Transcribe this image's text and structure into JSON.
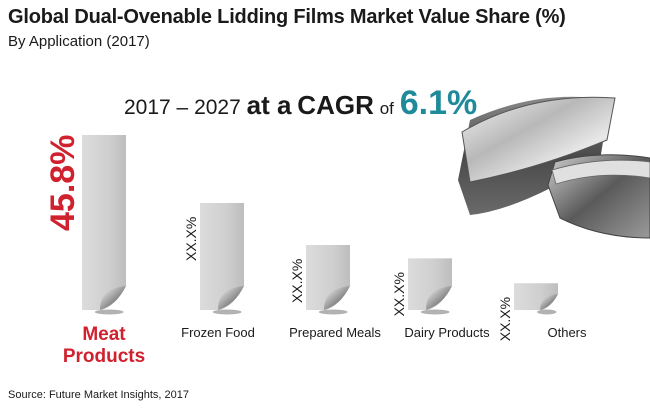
{
  "title": "Global Dual-Ovenable Lidding Films Market Value Share (%)",
  "subtitle": "By Application (2017)",
  "cagr": {
    "range": "2017 – 2027",
    "at_a": "at a",
    "label": "CAGR",
    "of": "of",
    "value": "6.1%"
  },
  "source": "Source: Future Market Insights, 2017",
  "colors": {
    "highlight": "#d0212f",
    "cagr": "#1e8a9a",
    "bar": "#c8c8c8",
    "text": "#1a1a1a"
  },
  "chart_data": {
    "type": "bar",
    "categories": [
      "Meat Products",
      "Frozen Food",
      "Prepared Meals",
      "Dairy Products",
      "Others"
    ],
    "category_lines": [
      [
        "Meat",
        "Products"
      ],
      [
        "Frozen Food"
      ],
      [
        "Prepared Meals"
      ],
      [
        "Dairy Products"
      ],
      [
        "Others"
      ]
    ],
    "labels": [
      "45.8%",
      "XX.X%",
      "XX.X%",
      "XX.X%",
      "XX.X%"
    ],
    "values": [
      45.8,
      28.0,
      17.0,
      13.5,
      7.0
    ],
    "highlight_index": 0,
    "ylim": [
      0,
      45.8
    ]
  }
}
